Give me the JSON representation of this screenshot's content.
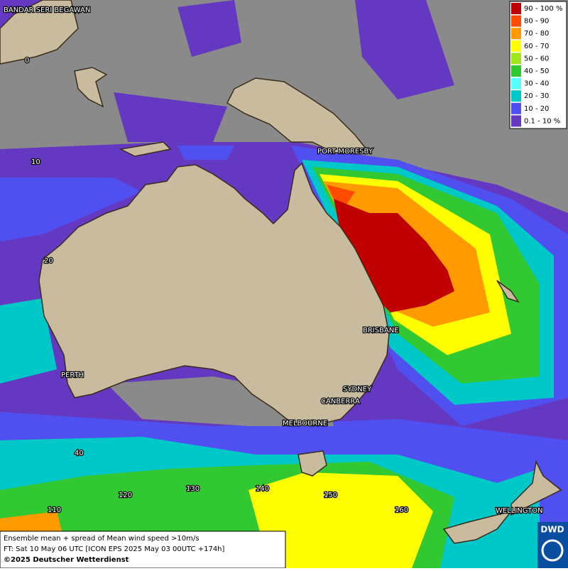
{
  "map": {
    "cities": [
      "BANDAR SERI BEGAWAN",
      "PORT MORESBY",
      "BRISBANE",
      "SYDNEY",
      "CANBERRA",
      "MELBOURNE",
      "PERTH",
      "WELLINGTON"
    ],
    "grid_labels": [
      "0",
      "10",
      "20",
      "40",
      "110",
      "120",
      "130",
      "140",
      "150",
      "160"
    ],
    "legend": [
      {
        "label": "90 - 100 %",
        "color": "#c00000"
      },
      {
        "label": "80 - 90",
        "color": "#ff4a00"
      },
      {
        "label": "70 - 80",
        "color": "#ff9a00"
      },
      {
        "label": "60 - 70",
        "color": "#ffff00"
      },
      {
        "label": "50 - 60",
        "color": "#a0e61e"
      },
      {
        "label": "40 - 50",
        "color": "#32c832"
      },
      {
        "label": "30 - 40",
        "color": "#5affff"
      },
      {
        "label": "20 - 30",
        "color": "#00c8c8"
      },
      {
        "label": "10 - 20",
        "color": "#5050f0"
      },
      {
        "label": "0.1 - 10 %",
        "color": "#6438c0"
      }
    ],
    "footer": [
      "Ensemble mean + spread of Mean wind speed >10m/s",
      "FT: Sat 10 May 06 UTC [ICON EPS 2025 May 03 00UTC +174h]",
      "©2025 Deutscher Wetterdienst"
    ],
    "logo": "DWD"
  }
}
